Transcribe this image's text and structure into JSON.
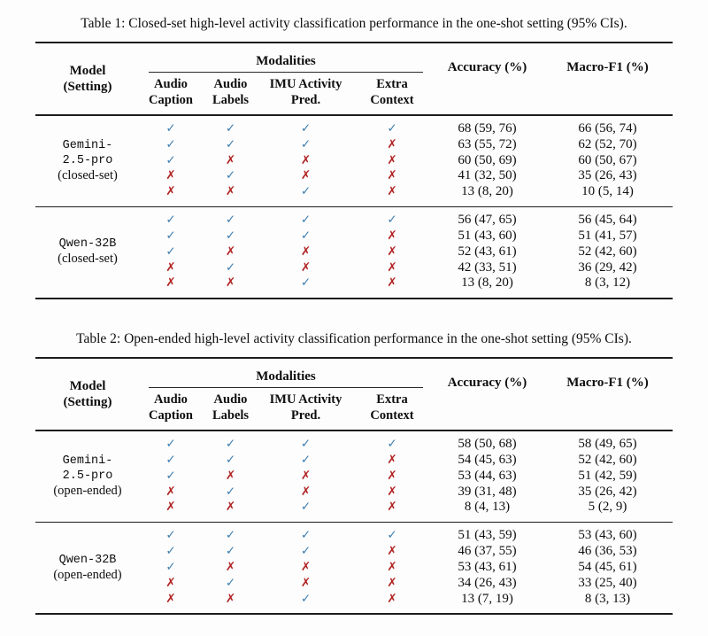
{
  "page": {
    "background": "#fdfdfd"
  },
  "colors": {
    "check": "#3e7fb0",
    "cross": "#b22222",
    "text": "#0e0e0e",
    "rule": "#1c1c1c"
  },
  "symbols": {
    "check": "✓",
    "cross": "✗"
  },
  "tables": [
    {
      "caption": "Table 1: Closed-set high-level activity classification performance in the one-shot setting (95% CIs).",
      "header": {
        "model_line1": "Model",
        "model_line2": "(Setting)",
        "modalities_label": "Modalities",
        "modalities": [
          {
            "line1": "Audio",
            "line2": "Caption"
          },
          {
            "line1": "Audio",
            "line2": "Labels"
          },
          {
            "line1": "IMU Activity",
            "line2": "Pred."
          },
          {
            "line1": "Extra",
            "line2": "Context"
          }
        ],
        "accuracy_label": "Accuracy (%)",
        "macro_f1_label": "Macro-F1 (%)"
      },
      "groups": [
        {
          "model_lines": [
            "Gemini-",
            "2.5-pro"
          ],
          "setting": "(closed-set)",
          "rows": [
            {
              "marks": [
                1,
                1,
                1,
                1
              ],
              "accuracy": "68 (59, 76)",
              "macro_f1": "66 (56, 74)"
            },
            {
              "marks": [
                1,
                1,
                1,
                0
              ],
              "accuracy": "63 (55, 72)",
              "macro_f1": "62 (52, 70)"
            },
            {
              "marks": [
                1,
                0,
                0,
                0
              ],
              "accuracy": "60 (50, 69)",
              "macro_f1": "60 (50, 67)"
            },
            {
              "marks": [
                0,
                1,
                0,
                0
              ],
              "accuracy": "41 (32, 50)",
              "macro_f1": "35 (26, 43)"
            },
            {
              "marks": [
                0,
                0,
                1,
                0
              ],
              "accuracy": "13 (8, 20)",
              "macro_f1": "10 (5, 14)"
            }
          ]
        },
        {
          "model_lines": [
            "Qwen-32B"
          ],
          "setting": "(closed-set)",
          "rows": [
            {
              "marks": [
                1,
                1,
                1,
                1
              ],
              "accuracy": "56 (47, 65)",
              "macro_f1": "56 (45, 64)"
            },
            {
              "marks": [
                1,
                1,
                1,
                0
              ],
              "accuracy": "51 (43, 60)",
              "macro_f1": "51 (41, 57)"
            },
            {
              "marks": [
                1,
                0,
                0,
                0
              ],
              "accuracy": "52 (43, 61)",
              "macro_f1": "52 (42, 60)"
            },
            {
              "marks": [
                0,
                1,
                0,
                0
              ],
              "accuracy": "42 (33, 51)",
              "macro_f1": "36 (29, 42)"
            },
            {
              "marks": [
                0,
                0,
                1,
                0
              ],
              "accuracy": "13 (8, 20)",
              "macro_f1": "8 (3, 12)"
            }
          ]
        }
      ]
    },
    {
      "caption": "Table 2: Open-ended high-level activity classification performance in the one-shot setting (95% CIs).",
      "header": {
        "model_line1": "Model",
        "model_line2": "(Setting)",
        "modalities_label": "Modalities",
        "modalities": [
          {
            "line1": "Audio",
            "line2": "Caption"
          },
          {
            "line1": "Audio",
            "line2": "Labels"
          },
          {
            "line1": "IMU Activity",
            "line2": "Pred."
          },
          {
            "line1": "Extra",
            "line2": "Context"
          }
        ],
        "accuracy_label": "Accuracy (%)",
        "macro_f1_label": "Macro-F1 (%)"
      },
      "groups": [
        {
          "model_lines": [
            "Gemini-",
            "2.5-pro"
          ],
          "setting": "(open-ended)",
          "rows": [
            {
              "marks": [
                1,
                1,
                1,
                1
              ],
              "accuracy": "58 (50, 68)",
              "macro_f1": "58 (49, 65)"
            },
            {
              "marks": [
                1,
                1,
                1,
                0
              ],
              "accuracy": "54 (45, 63)",
              "macro_f1": "52 (42, 60)"
            },
            {
              "marks": [
                1,
                0,
                0,
                0
              ],
              "accuracy": "53 (44, 63)",
              "macro_f1": "51 (42, 59)"
            },
            {
              "marks": [
                0,
                1,
                0,
                0
              ],
              "accuracy": "39 (31, 48)",
              "macro_f1": "35 (26, 42)"
            },
            {
              "marks": [
                0,
                0,
                1,
                0
              ],
              "accuracy": "8 (4, 13)",
              "macro_f1": "5 (2, 9)"
            }
          ]
        },
        {
          "model_lines": [
            "Qwen-32B"
          ],
          "setting": "(open-ended)",
          "rows": [
            {
              "marks": [
                1,
                1,
                1,
                1
              ],
              "accuracy": "51 (43, 59)",
              "macro_f1": "53 (43, 60)"
            },
            {
              "marks": [
                1,
                1,
                1,
                0
              ],
              "accuracy": "46 (37, 55)",
              "macro_f1": "46 (36, 53)"
            },
            {
              "marks": [
                1,
                0,
                0,
                0
              ],
              "accuracy": "53 (43, 61)",
              "macro_f1": "54 (45, 61)"
            },
            {
              "marks": [
                0,
                1,
                0,
                0
              ],
              "accuracy": "34 (26, 43)",
              "macro_f1": "33 (25, 40)"
            },
            {
              "marks": [
                0,
                0,
                1,
                0
              ],
              "accuracy": "13 (7, 19)",
              "macro_f1": "8 (3, 13)"
            }
          ]
        }
      ]
    }
  ]
}
